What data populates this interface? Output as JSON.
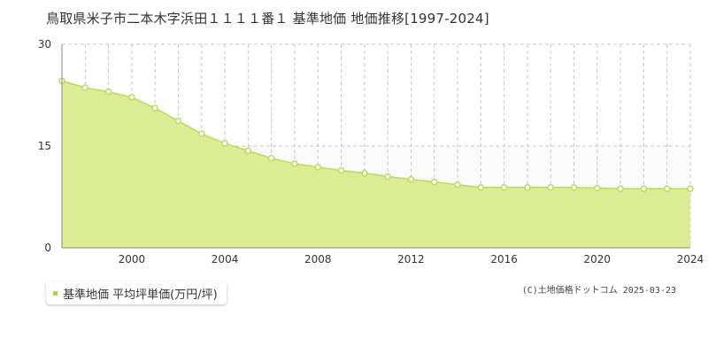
{
  "title": "鳥取県米子市二本木字浜田１１１１番１ 基準地価 地価推移[1997-2024]",
  "legend": {
    "label": "基準地価 平均坪単価(万円/坪)"
  },
  "copyright": "(C)土地価格ドットコム 2025-03-23",
  "colors": {
    "fill": "#dcec94",
    "line": "#b8dc5a",
    "point_fill": "#ffffff",
    "marker": "#a8d64a"
  },
  "chart_data": {
    "type": "area",
    "title": "鳥取県米子市二本木字浜田１１１１番１ 基準地価 地価推移[1997-2024]",
    "xlabel": "",
    "ylabel": "",
    "xlim": [
      1997,
      2024
    ],
    "ylim": [
      0,
      30
    ],
    "x_ticks": [
      2000,
      2004,
      2008,
      2012,
      2016,
      2020,
      2024
    ],
    "y_ticks": [
      0,
      15,
      30
    ],
    "grid": true,
    "series": [
      {
        "name": "基準地価 平均坪単価(万円/坪)",
        "x": [
          1997,
          1998,
          1999,
          2000,
          2001,
          2002,
          2003,
          2004,
          2005,
          2006,
          2007,
          2008,
          2009,
          2010,
          2011,
          2012,
          2013,
          2014,
          2015,
          2016,
          2017,
          2018,
          2019,
          2020,
          2021,
          2022,
          2023,
          2024
        ],
        "values": [
          24.6,
          23.6,
          23.0,
          22.2,
          20.6,
          18.7,
          16.8,
          15.4,
          14.3,
          13.2,
          12.4,
          11.9,
          11.4,
          11.0,
          10.5,
          10.1,
          9.7,
          9.3,
          8.9,
          8.9,
          8.9,
          8.9,
          8.9,
          8.8,
          8.7,
          8.7,
          8.7,
          8.7
        ]
      }
    ]
  }
}
